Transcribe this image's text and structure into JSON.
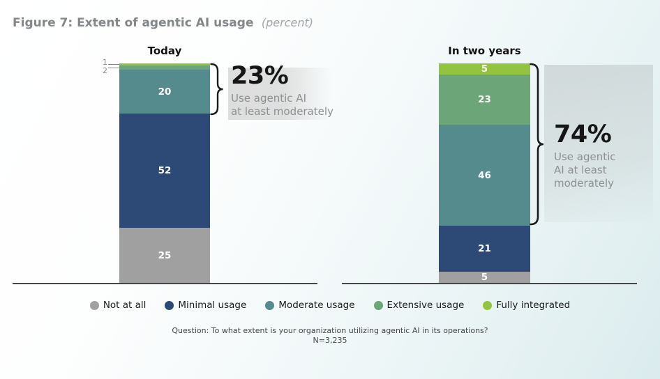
{
  "title": {
    "text": "Figure 7: Extent of agentic AI usage",
    "note": "(percent)"
  },
  "chart_data": {
    "type": "bar",
    "variant": "stacked-percent-columns",
    "categories": [
      "Today",
      "In two years"
    ],
    "series": [
      {
        "name": "Not at all",
        "color": "#a0a0a0",
        "values": [
          25,
          5
        ]
      },
      {
        "name": "Minimal usage",
        "color": "#2d4a77",
        "values": [
          52,
          21
        ]
      },
      {
        "name": "Moderate usage",
        "color": "#568b8e",
        "values": [
          20,
          46
        ]
      },
      {
        "name": "Extensive usage",
        "color": "#6ba578",
        "values": [
          2,
          23
        ]
      },
      {
        "name": "Fully integrated",
        "color": "#92c43f",
        "values": [
          1,
          5
        ]
      }
    ],
    "ylim": [
      0,
      100
    ],
    "grid": false,
    "legend_position": "bottom",
    "annotations": [
      {
        "category": "Today",
        "value": "23%",
        "lines": [
          "Use agentic AI",
          "at least moderately"
        ],
        "spans_series": [
          "Moderate usage",
          "Extensive usage",
          "Fully integrated"
        ]
      },
      {
        "category": "In two years",
        "value": "74%",
        "lines": [
          "Use agentic",
          "AI at least",
          "moderately"
        ],
        "spans_series": [
          "Moderate usage",
          "Extensive usage",
          "Fully integrated"
        ]
      }
    ]
  },
  "legend": {
    "items": [
      {
        "label": "Not at all",
        "color": "#a0a0a0"
      },
      {
        "label": "Minimal usage",
        "color": "#2d4a77"
      },
      {
        "label": "Moderate usage",
        "color": "#568b8e"
      },
      {
        "label": "Extensive usage",
        "color": "#6ba578"
      },
      {
        "label": "Fully integrated",
        "color": "#92c43f"
      }
    ]
  },
  "footer": {
    "question": "Question: To what extent is your organization utilizing agentic AI in its operations?",
    "sample": "N=3,235"
  }
}
